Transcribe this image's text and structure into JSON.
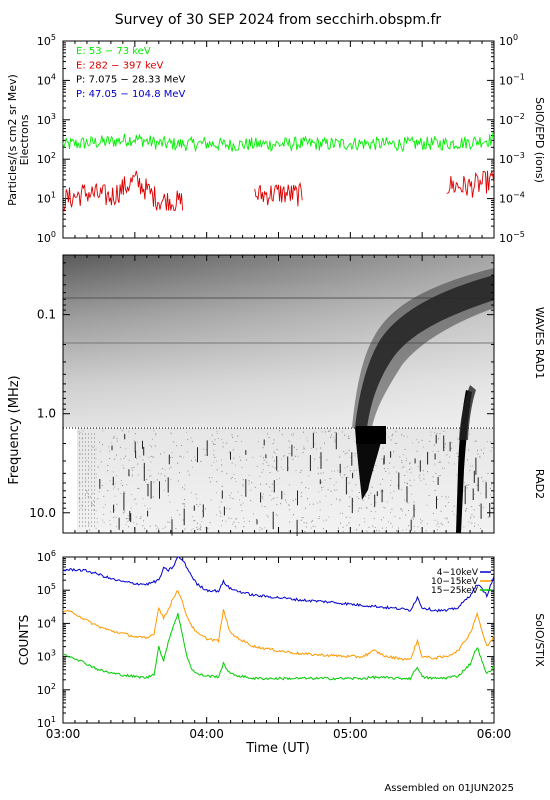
{
  "title": "Survey of 30 SEP 2024 from secchirh.obspm.fr",
  "footer": "Assembled on 01JUN2025",
  "chart_data": [
    {
      "type": "line",
      "panel": "particles",
      "ylabel_line1": "Particles/(s cm2 sr Mev)",
      "ylabel_line2": "Electrons",
      "right_label": "SolO/EPD (ions)",
      "yscale": "log",
      "ylim": [
        1,
        100000
      ],
      "yticks": [
        {
          "v": 1,
          "base": "10",
          "exp": "0"
        },
        {
          "v": 10,
          "base": "10",
          "exp": "1"
        },
        {
          "v": 100,
          "base": "10",
          "exp": "2"
        },
        {
          "v": 1000,
          "base": "10",
          "exp": "3"
        },
        {
          "v": 10000,
          "base": "10",
          "exp": "4"
        },
        {
          "v": 100000,
          "base": "10",
          "exp": "5"
        }
      ],
      "right_ylim": [
        1e-05,
        1
      ],
      "right_yticks": [
        {
          "v": 1e-05,
          "base": "10",
          "exp": "−5"
        },
        {
          "v": 0.0001,
          "base": "10",
          "exp": "−4"
        },
        {
          "v": 0.001,
          "base": "10",
          "exp": "−3"
        },
        {
          "v": 0.01,
          "base": "10",
          "exp": "−2"
        },
        {
          "v": 0.1,
          "base": "10",
          "exp": "−1"
        },
        {
          "v": 1,
          "base": "10",
          "exp": "0"
        }
      ],
      "legend": [
        {
          "name": "E: 53 − 73 keV",
          "color": "#00ee00"
        },
        {
          "name": "E: 282 − 397 keV",
          "color": "#dd0000"
        },
        {
          "name": "P: 7.075 − 28.33 MeV",
          "color": "#000000"
        },
        {
          "name": "P: 47.05 − 104.8 MeV",
          "color": "#0000cc"
        }
      ],
      "series": [
        {
          "name": "E: 53 − 73 keV",
          "color": "#00ee00",
          "x": [
            "03:00",
            "03:10",
            "03:20",
            "03:30",
            "03:40",
            "03:50",
            "04:00",
            "04:10",
            "04:20",
            "04:30",
            "04:40",
            "04:50",
            "05:00",
            "05:10",
            "05:20",
            "05:30",
            "05:40",
            "05:50",
            "06:00"
          ],
          "values": [
            230,
            260,
            280,
            330,
            250,
            240,
            250,
            230,
            240,
            240,
            250,
            240,
            250,
            250,
            240,
            250,
            250,
            270,
            320
          ]
        },
        {
          "name": "E: 282 − 397 keV",
          "color": "#dd0000",
          "x": [
            "03:00",
            "03:10",
            "03:20",
            "03:30",
            "03:40",
            "03:50",
            "04:00",
            "04:10",
            "04:20",
            "04:30",
            "04:40",
            "04:50",
            "05:00",
            "05:10",
            "05:20",
            "05:30",
            "05:40",
            "05:50",
            "06:00"
          ],
          "values": [
            9,
            14,
            11,
            30,
            9,
            8,
            null,
            null,
            12,
            14,
            12,
            null,
            null,
            14,
            null,
            null,
            22,
            20,
            30
          ]
        }
      ]
    },
    {
      "type": "heatmap",
      "panel": "waves",
      "ylabel": "Frequency (MHz)",
      "yscale": "log",
      "ylim": [
        0.025,
        16
      ],
      "yticks": [
        "0.1",
        "1.0",
        "10.0"
      ],
      "right_label_rad1": "WAVES RAD1",
      "right_label_rad2": "RAD2"
    },
    {
      "type": "line",
      "panel": "stix",
      "ylabel": "COUNTS",
      "right_label": "SolO/STIX",
      "xlabel": "Time (UT)",
      "yscale": "log",
      "ylim": [
        10,
        1000000
      ],
      "yticks": [
        {
          "v": 10,
          "base": "10",
          "exp": "1"
        },
        {
          "v": 100,
          "base": "10",
          "exp": "2"
        },
        {
          "v": 1000,
          "base": "10",
          "exp": "3"
        },
        {
          "v": 10000,
          "base": "10",
          "exp": "4"
        },
        {
          "v": 100000,
          "base": "10",
          "exp": "5"
        },
        {
          "v": 1000000,
          "base": "10",
          "exp": "6"
        }
      ],
      "xticks": [
        "03:00",
        "04:00",
        "05:00",
        "06:00"
      ],
      "legend": [
        {
          "name": "4−10keV",
          "color": "#0000cc"
        },
        {
          "name": "10−15keV",
          "color": "#ff9900"
        },
        {
          "name": "15−25keV",
          "color": "#00cc00"
        }
      ],
      "series": [
        {
          "name": "4−10keV",
          "color": "#0000cc",
          "x": [
            0,
            5,
            10,
            15,
            20,
            25,
            30,
            35,
            40,
            42,
            44,
            46,
            48,
            50,
            52,
            54,
            56,
            60,
            65,
            67,
            70,
            75,
            80,
            90,
            100,
            110,
            120,
            125,
            130,
            135,
            140,
            145,
            148,
            150,
            155,
            160,
            165,
            170,
            173,
            175,
            177,
            180
          ],
          "values": [
            400000,
            420000,
            380000,
            300000,
            220000,
            180000,
            160000,
            150000,
            200000,
            450000,
            400000,
            500000,
            1000000,
            800000,
            450000,
            250000,
            150000,
            100000,
            95000,
            180000,
            110000,
            85000,
            70000,
            60000,
            50000,
            45000,
            38000,
            35000,
            33000,
            30000,
            28000,
            25000,
            60000,
            30000,
            25000,
            24000,
            30000,
            70000,
            150000,
            110000,
            70000,
            250000
          ]
        },
        {
          "name": "10−15keV",
          "color": "#ff9900",
          "x": [
            0,
            5,
            10,
            15,
            20,
            25,
            30,
            35,
            38,
            40,
            42,
            44,
            46,
            48,
            50,
            52,
            54,
            56,
            60,
            65,
            67,
            70,
            75,
            80,
            90,
            100,
            110,
            120,
            125,
            130,
            135,
            140,
            145,
            148,
            150,
            155,
            160,
            165,
            170,
            173,
            175,
            177,
            180
          ],
          "values": [
            25000,
            20000,
            12000,
            8000,
            6000,
            5000,
            4000,
            3500,
            5000,
            30000,
            15000,
            25000,
            60000,
            100000,
            40000,
            15000,
            8000,
            5000,
            3500,
            3000,
            25000,
            5000,
            3000,
            2000,
            1500,
            1200,
            1100,
            1000,
            1000,
            1500,
            1000,
            900,
            800,
            3000,
            1000,
            900,
            1000,
            1500,
            5000,
            20000,
            6000,
            2000,
            4000
          ]
        },
        {
          "name": "15−25keV",
          "color": "#00cc00",
          "x": [
            0,
            5,
            10,
            15,
            20,
            25,
            30,
            35,
            38,
            40,
            42,
            44,
            46,
            48,
            50,
            52,
            54,
            56,
            60,
            65,
            67,
            70,
            75,
            80,
            90,
            100,
            110,
            120,
            125,
            130,
            135,
            140,
            145,
            148,
            150,
            155,
            160,
            165,
            170,
            173,
            175,
            177,
            180
          ],
          "values": [
            1200,
            900,
            600,
            400,
            320,
            280,
            250,
            230,
            300,
            2000,
            700,
            3000,
            8000,
            20000,
            4000,
            900,
            400,
            300,
            260,
            250,
            600,
            300,
            250,
            220,
            220,
            220,
            220,
            220,
            220,
            240,
            230,
            220,
            220,
            500,
            240,
            220,
            230,
            260,
            600,
            2000,
            700,
            300,
            500
          ]
        }
      ]
    }
  ]
}
